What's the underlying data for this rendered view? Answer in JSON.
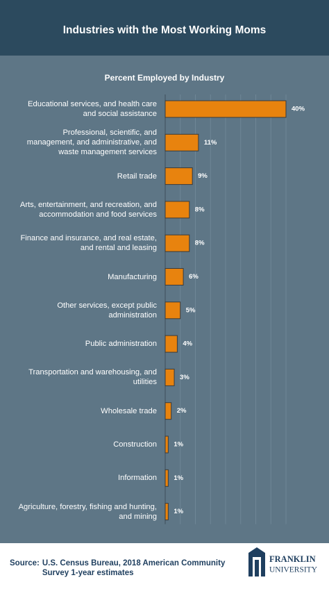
{
  "chart_data": {
    "type": "bar",
    "orientation": "horizontal",
    "title": "Industries with the Most Working Moms",
    "subtitle": "Percent Employed by Industry",
    "categories": [
      "Educational services, and health care and social assistance",
      "Professional, scientific, and management, and administrative, and waste management services",
      "Retail trade",
      "Arts, entertainment, and recreation, and accommodation and food services",
      "Finance and insurance, and real estate, and rental and leasing",
      "Manufacturing",
      "Other services, except public administration",
      "Public administration",
      "Transportation and warehousing, and utilities",
      "Wholesale trade",
      "Construction",
      "Information",
      "Agriculture, forestry, fishing and hunting, and mining"
    ],
    "values": [
      40,
      11,
      9,
      8,
      8,
      6,
      5,
      4,
      3,
      2,
      1,
      1,
      1
    ],
    "value_labels": [
      "40%",
      "11%",
      "9%",
      "8%",
      "8%",
      "6%",
      "5%",
      "4%",
      "3%",
      "2%",
      "1%",
      "1%",
      "1%"
    ],
    "color": "#e8830e",
    "xlim": [
      0,
      40
    ],
    "xticks": [
      0,
      5,
      10,
      15,
      20,
      25,
      30,
      35,
      40
    ],
    "grid": true,
    "source_label": "Source:",
    "source": "U.S. Census Bureau, 2018 American Community Survey 1-year estimates",
    "logo": {
      "line1": "FRANKLIN",
      "line2": "UNIVERSITY"
    }
  }
}
